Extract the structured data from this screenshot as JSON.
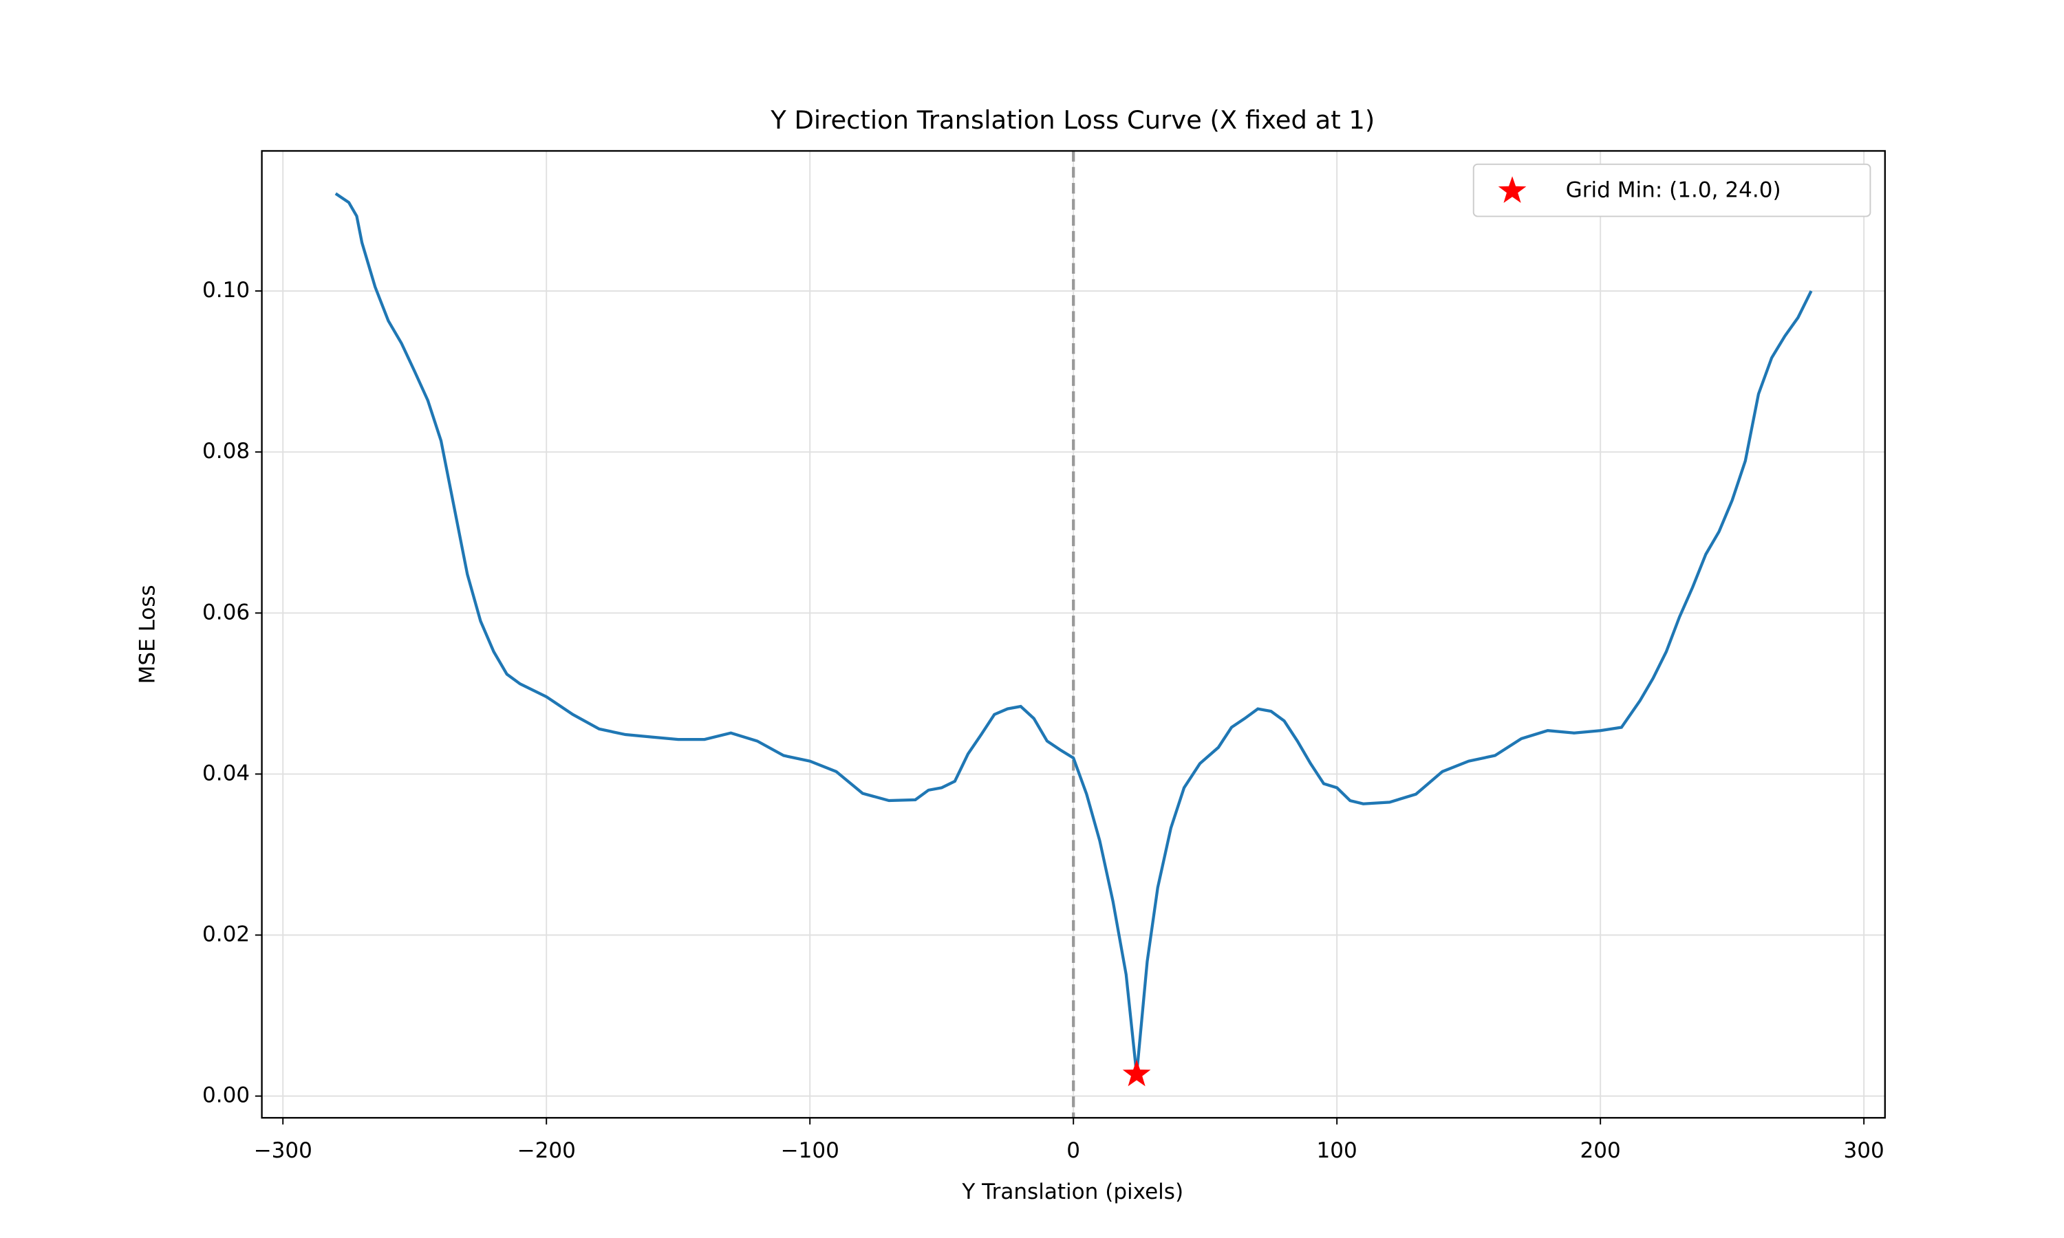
{
  "chart_data": {
    "type": "line",
    "title": "Y Direction Translation Loss Curve (X fixed at 1)",
    "x_label": "Y Translation (pixels)",
    "y_label": "MSE Loss",
    "x": [
      -280,
      -275,
      -272,
      -270,
      -265,
      -260,
      -255,
      -250,
      -245,
      -240,
      -235,
      -230,
      -225,
      -220,
      -215,
      -210,
      -200,
      -190,
      -180,
      -170,
      -160,
      -150,
      -140,
      -130,
      -120,
      -110,
      -100,
      -90,
      -80,
      -70,
      -60,
      -55,
      -50,
      -45,
      -40,
      -35,
      -30,
      -25,
      -20,
      -15,
      -10,
      -5,
      0,
      5,
      10,
      15,
      20,
      24,
      28,
      32,
      37,
      42,
      48,
      55,
      60,
      65,
      70,
      75,
      80,
      85,
      90,
      95,
      100,
      105,
      110,
      120,
      130,
      140,
      150,
      160,
      170,
      180,
      190,
      200,
      208,
      215,
      220,
      225,
      230,
      235,
      240,
      245,
      250,
      255,
      260,
      265,
      270,
      275,
      280
    ],
    "series": [
      {
        "color": "#1f77b4",
        "values": [
          0.1121,
          0.111,
          0.1093,
          0.106,
          0.1005,
          0.0963,
          0.0935,
          0.09,
          0.0864,
          0.0814,
          0.0731,
          0.0648,
          0.059,
          0.0552,
          0.0524,
          0.0512,
          0.0496,
          0.0474,
          0.0456,
          0.0449,
          0.0446,
          0.0443,
          0.0443,
          0.0451,
          0.0441,
          0.0423,
          0.0416,
          0.0403,
          0.0376,
          0.0367,
          0.0368,
          0.038,
          0.0383,
          0.0391,
          0.0425,
          0.0449,
          0.0474,
          0.0481,
          0.0484,
          0.0469,
          0.0441,
          0.043,
          0.042,
          0.0375,
          0.0317,
          0.0242,
          0.0151,
          0.0027,
          0.0167,
          0.0259,
          0.0333,
          0.0383,
          0.0413,
          0.0433,
          0.0458,
          0.0469,
          0.0481,
          0.0478,
          0.0466,
          0.0441,
          0.0413,
          0.0388,
          0.0383,
          0.0367,
          0.0363,
          0.0365,
          0.0375,
          0.0403,
          0.0416,
          0.0423,
          0.0444,
          0.0454,
          0.0451,
          0.0454,
          0.0458,
          0.0491,
          0.0519,
          0.0552,
          0.0595,
          0.0632,
          0.0673,
          0.0701,
          0.074,
          0.0789,
          0.0872,
          0.0917,
          0.0944,
          0.0967,
          0.1
        ]
      }
    ],
    "markers": [
      {
        "name": "Grid Min: (1.0, 24.0)",
        "color": "#ff0000",
        "x": [
          24
        ],
        "values": [
          0.0027
        ]
      }
    ],
    "vline_x": 0,
    "xlim": [
      -308,
      308
    ],
    "ylim": [
      -0.0027,
      0.1174
    ],
    "xticks": [
      {
        "value": -300,
        "label": "−300"
      },
      {
        "value": -200,
        "label": "−200"
      },
      {
        "value": -100,
        "label": "−100"
      },
      0,
      100,
      200,
      300
    ],
    "yticks": [
      {
        "value": 0,
        "label": "0.00"
      },
      {
        "value": 0.02,
        "label": "0.02"
      },
      {
        "value": 0.04,
        "label": "0.04"
      },
      {
        "value": 0.06,
        "label": "0.06"
      },
      {
        "value": 0.08,
        "label": "0.08"
      },
      {
        "value": 0.1,
        "label": "0.10"
      }
    ],
    "grid": true,
    "legend": "upper right"
  }
}
